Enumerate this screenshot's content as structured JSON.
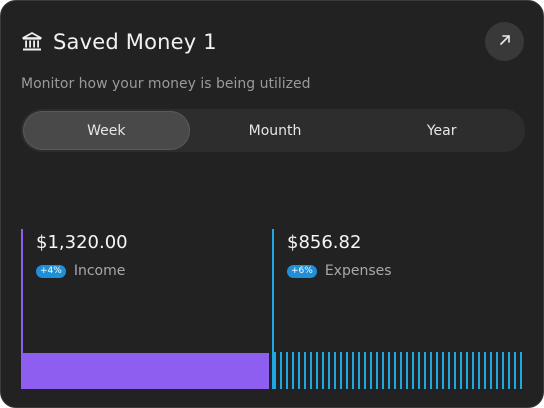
{
  "header": {
    "title": "Saved Money 1",
    "subtitle": "Monitor how your money is being utilized",
    "title_icon": "bank-icon",
    "action_icon": "arrow-up-right-icon"
  },
  "tabs": [
    {
      "label": "Week",
      "active": true
    },
    {
      "label": "Mounth",
      "active": false
    },
    {
      "label": "Year",
      "active": false
    }
  ],
  "stats": {
    "income": {
      "amount": "$1,320.00",
      "change": "+4%",
      "label": "Income",
      "color": "#8E5EF0"
    },
    "expenses": {
      "amount": "$856.82",
      "change": "+6%",
      "label": "Expenses",
      "color": "#1EA7E0"
    }
  }
}
